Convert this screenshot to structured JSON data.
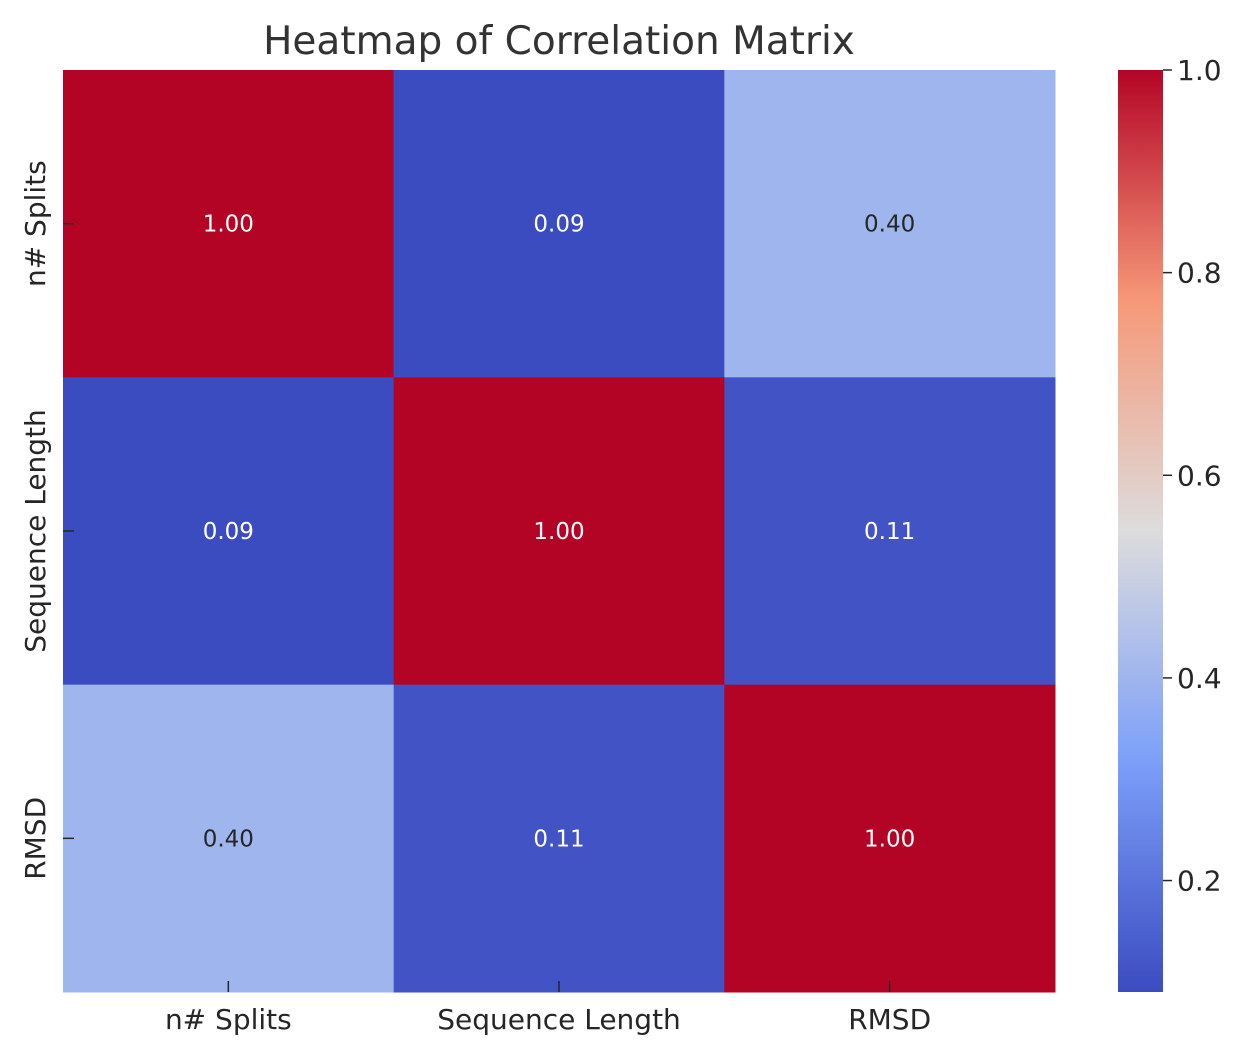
{
  "chart_data": {
    "type": "heatmap",
    "title": "Heatmap of Correlation Matrix",
    "xlabel": "",
    "ylabel": "",
    "x_categories": [
      "n# Splits",
      "Sequence Length",
      "RMSD"
    ],
    "y_categories": [
      "n# Splits",
      "Sequence Length",
      "RMSD"
    ],
    "matrix": [
      [
        1.0,
        0.09,
        0.4
      ],
      [
        0.09,
        1.0,
        0.11
      ],
      [
        0.4,
        0.11,
        1.0
      ]
    ],
    "annotations": [
      [
        "1.00",
        "0.09",
        "0.40"
      ],
      [
        "0.09",
        "1.00",
        "0.11"
      ],
      [
        "0.40",
        "0.11",
        "1.00"
      ]
    ],
    "colormap": "coolwarm",
    "colorbar": {
      "range": [
        0.09,
        1.0
      ],
      "ticks": [
        0.2,
        0.4,
        0.6,
        0.8,
        1.0
      ],
      "tick_labels": [
        "0.2",
        "0.4",
        "0.6",
        "0.8",
        "1.0"
      ]
    },
    "colors": {
      "high": "#b40426",
      "low": "#3b4cc0",
      "mid": "#dddcdc"
    }
  }
}
